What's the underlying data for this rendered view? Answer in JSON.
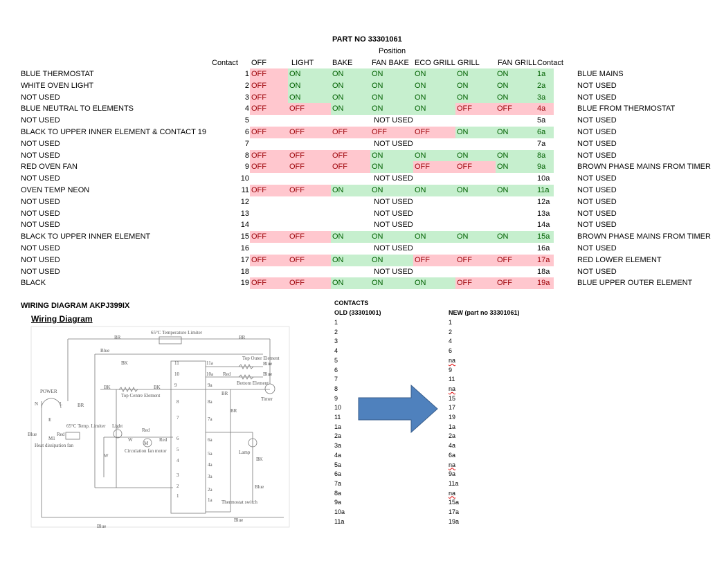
{
  "header": {
    "part_no": "PART NO 33301061",
    "position": "Position"
  },
  "columns": [
    "Contact",
    "OFF",
    "LIGHT",
    "BAKE",
    "FAN BAKE",
    "ECO GRILL",
    "GRILL",
    "FAN GRILL",
    "Contact"
  ],
  "rows": [
    {
      "label": "BLUE THERMOSTAT",
      "contact": "1",
      "states": [
        "OFF",
        "ON",
        "ON",
        "ON",
        "ON",
        "ON",
        "ON"
      ],
      "contact_a": "1a",
      "right": "BLUE MAINS"
    },
    {
      "label": "WHITE OVEN LIGHT",
      "contact": "2",
      "states": [
        "OFF",
        "ON",
        "ON",
        "ON",
        "ON",
        "ON",
        "ON"
      ],
      "contact_a": "2a",
      "right": "NOT USED"
    },
    {
      "label": "NOT USED",
      "contact": "3",
      "states": [
        "OFF",
        "ON",
        "ON",
        "ON",
        "ON",
        "ON",
        "ON"
      ],
      "contact_a": "3a",
      "right": "NOT USED"
    },
    {
      "label": "BLUE NEUTRAL TO ELEMENTS",
      "contact": "4",
      "states": [
        "OFF",
        "OFF",
        "ON",
        "ON",
        "ON",
        "OFF",
        "OFF"
      ],
      "contact_a": "4a",
      "right": "BLUE FROM THERMOSTAT"
    },
    {
      "label": "NOT USED",
      "contact": "5",
      "note": "NOT USED",
      "contact_a": "5a",
      "right": "NOT USED"
    },
    {
      "label": "BLACK TO UPPER INNER ELEMENT & CONTACT 19",
      "contact": "6",
      "states": [
        "OFF",
        "OFF",
        "OFF",
        "OFF",
        "OFF",
        "ON",
        "ON"
      ],
      "contact_a": "6a",
      "right": "NOT USED"
    },
    {
      "label": "NOT USED",
      "contact": "7",
      "note": "NOT USED",
      "contact_a": "7a",
      "right": "NOT USED"
    },
    {
      "label": "NOT USED",
      "contact": "8",
      "states": [
        "OFF",
        "OFF",
        "OFF",
        "ON",
        "ON",
        "ON",
        "ON"
      ],
      "contact_a": "8a",
      "right": "NOT USED"
    },
    {
      "label": "RED OVEN FAN",
      "contact": "9",
      "states": [
        "OFF",
        "OFF",
        "OFF",
        "ON",
        "OFF",
        "OFF",
        "ON"
      ],
      "contact_a": "9a",
      "right": "BROWN PHASE MAINS FROM TIMER"
    },
    {
      "label": "NOT USED",
      "contact": "10",
      "note": "NOT USED",
      "contact_a": "10a",
      "right": "NOT USED"
    },
    {
      "label": "OVEN TEMP NEON",
      "contact": "11",
      "states": [
        "OFF",
        "OFF",
        "ON",
        "ON",
        "ON",
        "ON",
        "ON"
      ],
      "contact_a": "11a",
      "right": "NOT USED"
    },
    {
      "label": "NOT USED",
      "contact": "12",
      "note": "NOT USED",
      "contact_a": "12a",
      "right": "NOT USED"
    },
    {
      "label": "NOT USED",
      "contact": "13",
      "note": "NOT USED",
      "contact_a": "13a",
      "right": "NOT USED"
    },
    {
      "label": "NOT USED",
      "contact": "14",
      "note": "NOT USED",
      "contact_a": "14a",
      "right": "NOT USED"
    },
    {
      "label": "BLACK TO UPPER INNER ELEMENT",
      "contact": "15",
      "states": [
        "OFF",
        "OFF",
        "ON",
        "ON",
        "ON",
        "ON",
        "ON"
      ],
      "contact_a": "15a",
      "right": "BROWN PHASE MAINS FROM TIMER"
    },
    {
      "label": "NOT USED",
      "contact": "16",
      "note": "NOT USED",
      "contact_a": "16a",
      "right": "NOT USED"
    },
    {
      "label": "NOT USED",
      "contact": "17",
      "states": [
        "OFF",
        "OFF",
        "ON",
        "ON",
        "OFF",
        "OFF",
        "OFF"
      ],
      "contact_a": "17a",
      "right": "RED LOWER ELEMENT"
    },
    {
      "label": "NOT USED",
      "contact": "18",
      "note": "NOT USED",
      "contact_a": "18a",
      "right": "NOT USED"
    },
    {
      "label": "BLACK",
      "contact": "19",
      "states": [
        "OFF",
        "OFF",
        "ON",
        "ON",
        "ON",
        "OFF",
        "OFF"
      ],
      "contact_a": "19a",
      "right": "BLUE UPPER OUTER ELEMENT"
    }
  ],
  "wiring": {
    "title": "WIRING DIAGRAM AKPJ399IX",
    "subtitle": "Wiring Diagram",
    "labels": [
      "65°C Temperature Limiter",
      "BR",
      "BR",
      "Blue",
      "BK",
      "11",
      "11a",
      "Top Outer Element",
      "Blue",
      "10",
      "10a",
      "Red",
      "Blue",
      "BK",
      "BK",
      "Top Centre Element",
      "9",
      "9a",
      "Bottom Element",
      "BR",
      "Timer",
      "POWER",
      "N",
      "L",
      "BR",
      "E",
      "8",
      "8a",
      "BR",
      "65°C Temp. Limiter",
      "Light",
      "Red",
      "7",
      "7a",
      "Blue",
      "M1",
      "Red",
      "W",
      "M",
      "Red",
      "6",
      "6a",
      "Heat dissipation fan",
      "Circulation fan motor",
      "5",
      "5a",
      "Lamp",
      "W",
      "4",
      "4a",
      "BK",
      "3",
      "3a",
      "2",
      "2a",
      "Blue",
      "1",
      "1a",
      "Thermostat switch",
      "Blue",
      "Blue"
    ]
  },
  "contacts": {
    "title": "CONTACTS",
    "old_header": "OLD (33301001)",
    "new_header": "NEW (part no 33301061)",
    "old": [
      "1",
      "2",
      "3",
      "4",
      "5",
      "6",
      "7",
      "8",
      "9",
      "10",
      "11",
      "1a",
      "2a",
      "3a",
      "4a",
      "5a",
      "6a",
      "7a",
      "8a",
      "9a",
      "10a",
      "11a"
    ],
    "new": [
      "1",
      "2",
      "4",
      "6",
      "na",
      "9",
      "11",
      "na",
      "15",
      "17",
      "19",
      "1a",
      "2a",
      "4a",
      "6a",
      "na",
      "9a",
      "11a",
      "na",
      "15a",
      "17a",
      "19a"
    ]
  }
}
